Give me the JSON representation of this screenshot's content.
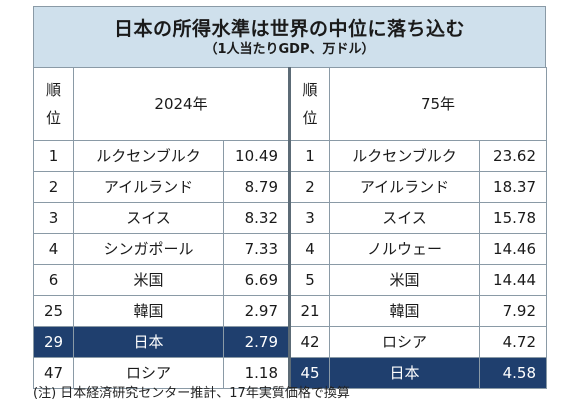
{
  "title": "日本の所得水準は世界の中位に落ち込む",
  "subtitle": "（1人当たりGDP、万ドル）",
  "header": {
    "rank_label_line1": "順",
    "rank_label_line2": "位",
    "year_left": "2024年",
    "year_right": "75年"
  },
  "rows": [
    {
      "rank_left": "1",
      "country_left": "ルクセンブルク",
      "value_left": "10.49",
      "rank_right": "1",
      "country_right": "ルクセンブルク",
      "value_right": "23.62"
    },
    {
      "rank_left": "2",
      "country_left": "アイルランド",
      "value_left": "8.79",
      "rank_right": "2",
      "country_right": "アイルランド",
      "value_right": "18.37"
    },
    {
      "rank_left": "3",
      "country_left": "スイス",
      "value_left": "8.32",
      "rank_right": "3",
      "country_right": "スイス",
      "value_right": "15.78"
    },
    {
      "rank_left": "4",
      "country_left": "シンガポール",
      "value_left": "7.33",
      "rank_right": "4",
      "country_right": "ノルウェー",
      "value_right": "14.46"
    },
    {
      "rank_left": "6",
      "country_left": "米国",
      "value_left": "6.69",
      "rank_right": "5",
      "country_right": "米国",
      "value_right": "14.44"
    },
    {
      "rank_left": "25",
      "country_left": "韓国",
      "value_left": "2.97",
      "rank_right": "21",
      "country_right": "韓国",
      "value_right": "7.92"
    },
    {
      "rank_left": "29",
      "country_left": "日本",
      "value_left": "2.79",
      "rank_right": "42",
      "country_right": "ロシア",
      "value_right": "4.72"
    },
    {
      "rank_left": "47",
      "country_left": "ロシア",
      "value_left": "1.18",
      "rank_right": "45",
      "country_right": "日本",
      "value_right": "4.58"
    }
  ],
  "highlight_color": "#1f3f6e",
  "title_bg_color": "#cfe0ec",
  "note": "(注) 日本経済研究センター推計、17年実質価格で換算"
}
